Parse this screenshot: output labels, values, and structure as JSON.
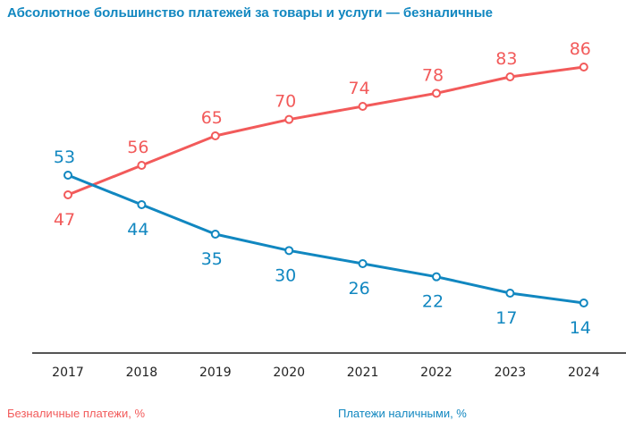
{
  "chart_data": {
    "type": "line",
    "title": "Абсолютное большинство платежей за товары и услуги — безналичные",
    "xlabel": "",
    "ylabel": "",
    "x": [
      "2017",
      "2018",
      "2019",
      "2020",
      "2021",
      "2022",
      "2023",
      "2024"
    ],
    "series": [
      {
        "name": "Безналичные платежи, %",
        "color": "#f25a5a",
        "values": [
          47,
          56,
          65,
          70,
          74,
          78,
          83,
          86
        ],
        "label_position": [
          "below",
          "above",
          "above",
          "above",
          "above",
          "above",
          "above",
          "above"
        ]
      },
      {
        "name": "Платежи наличными, %",
        "color": "#1187c0",
        "values": [
          53,
          44,
          35,
          30,
          26,
          22,
          17,
          14
        ],
        "label_position": [
          "above",
          "below",
          "below",
          "below",
          "below",
          "below",
          "below",
          "below"
        ]
      }
    ],
    "ylim": [
      14,
      86
    ],
    "grid": false,
    "legend": "bottom"
  }
}
